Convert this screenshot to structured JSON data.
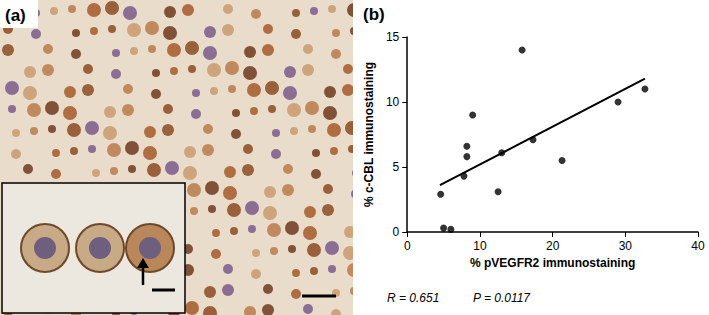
{
  "panel_a": {
    "label": "(a)"
  },
  "chart_data": {
    "type": "scatter",
    "panel_label": "(b)",
    "x_label": "% pVEGFR2 immunostaining",
    "y_label": "% c-CBL immunostaining",
    "x": [
      4.6,
      5.0,
      6.0,
      7.8,
      8.2,
      8.2,
      9.0,
      12.5,
      13.0,
      15.8,
      17.3,
      21.3,
      29.0,
      32.7
    ],
    "values": [
      2.9,
      0.3,
      0.2,
      4.3,
      5.8,
      6.6,
      9.0,
      3.1,
      6.1,
      14.0,
      7.1,
      5.5,
      10.0,
      11.0
    ],
    "color": "#000000",
    "marker": "circle",
    "fit_line": {
      "x": [
        4.5,
        32.7
      ],
      "values": [
        3.6,
        11.8
      ]
    },
    "xlim": [
      0,
      40
    ],
    "xticks": [
      0,
      10,
      20,
      30,
      40
    ],
    "ylim": [
      0,
      15
    ],
    "yticks": [
      0,
      5,
      10,
      15
    ],
    "grid": false,
    "annotations": [
      "R = 0.651",
      "P = 0.0117"
    ]
  }
}
